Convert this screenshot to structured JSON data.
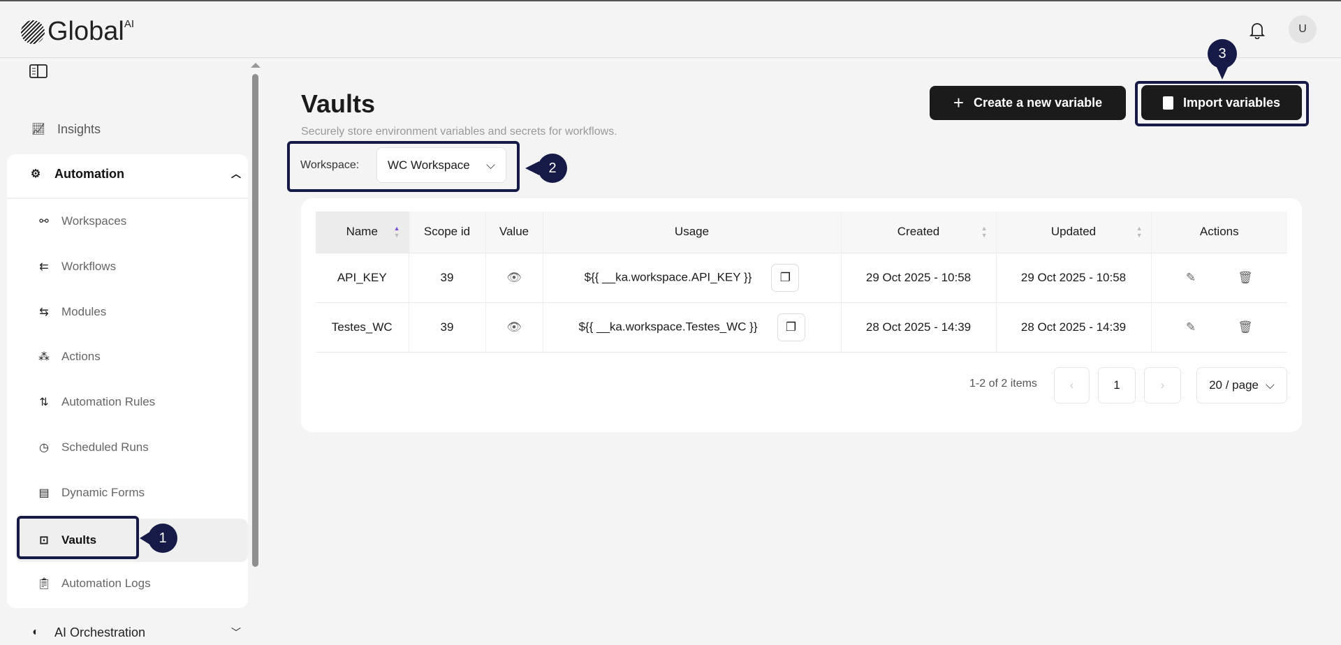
{
  "app": {
    "logo_text": "Global",
    "logo_sup": "AI",
    "avatar_initial": "U"
  },
  "sidebar": {
    "insights": "Insights",
    "automation": "Automation",
    "items": [
      {
        "label": "Workspaces",
        "icon": "workspaces-icon"
      },
      {
        "label": "Workflows",
        "icon": "workflows-icon"
      },
      {
        "label": "Modules",
        "icon": "modules-icon"
      },
      {
        "label": "Actions",
        "icon": "actions-icon"
      },
      {
        "label": "Automation Rules",
        "icon": "rules-icon"
      },
      {
        "label": "Scheduled Runs",
        "icon": "timer-icon"
      },
      {
        "label": "Dynamic Forms",
        "icon": "form-icon"
      },
      {
        "label": "Vaults",
        "icon": "vault-icon",
        "selected": true
      },
      {
        "label": "Automation Logs",
        "icon": "clipboard-icon"
      }
    ],
    "ai_orchestration": "AI Orchestration"
  },
  "page": {
    "title": "Vaults",
    "subtitle": "Securely store environment variables and secrets for workflows.",
    "create_label": "Create a new variable",
    "import_label": "Import variables",
    "workspace_label": "Workspace:",
    "workspace_value": "WC Workspace"
  },
  "annotations": [
    "1",
    "2",
    "3"
  ],
  "table": {
    "headers": [
      "Name",
      "Scope id",
      "Value",
      "Usage",
      "Created",
      "Updated",
      "Actions"
    ],
    "rows": [
      {
        "name": "API_KEY",
        "scope": "39",
        "usage": "${{ __ka.workspace.API_KEY }}",
        "created": "29 Oct 2025 - 10:58",
        "updated": "29 Oct 2025 - 10:58"
      },
      {
        "name": "Testes_WC",
        "scope": "39",
        "usage": "${{ __ka.workspace.Testes_WC }}",
        "created": "28 Oct 2025 - 14:39",
        "updated": "28 Oct 2025 - 14:39"
      }
    ]
  },
  "pagination": {
    "summary": "1-2 of 2 items",
    "current": "1",
    "page_size": "20 / page"
  },
  "colors": {
    "annotation": "#151a46",
    "button": "#1b1b1b",
    "sort_active": "#7b4fd6"
  }
}
